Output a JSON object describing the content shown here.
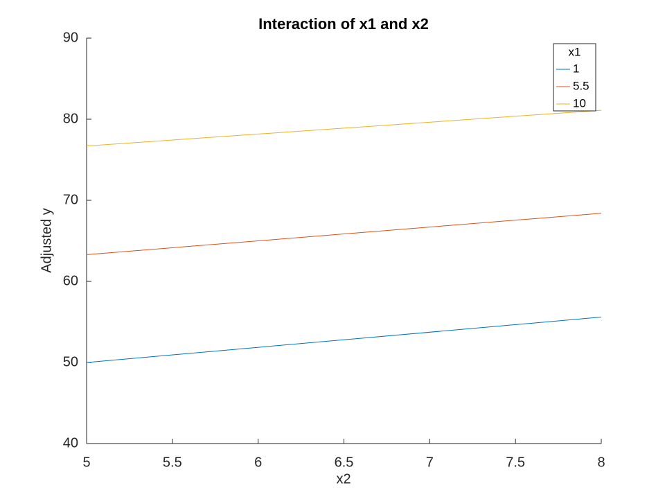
{
  "chart_data": {
    "type": "line",
    "title": "Interaction of x1 and x2",
    "x_label": "x2",
    "y_label": "Adjusted y",
    "x": [
      5,
      8
    ],
    "series": [
      {
        "name": "1",
        "color": "#0072bd",
        "values": [
          50,
          55.6
        ]
      },
      {
        "name": "5.5",
        "color": "#d95319",
        "values": [
          63.3,
          68.4
        ]
      },
      {
        "name": "10",
        "color": "#edb120",
        "values": [
          76.7,
          81.1
        ]
      }
    ],
    "legend_title": "x1",
    "legend_position": "upper-right",
    "xlim": [
      5,
      8
    ],
    "xticks": [
      5,
      5.5,
      6,
      6.5,
      7,
      7.5,
      8
    ],
    "ylim": [
      40,
      90
    ],
    "yticks": [
      40,
      50,
      60,
      70,
      80,
      90
    ],
    "grid": false
  }
}
